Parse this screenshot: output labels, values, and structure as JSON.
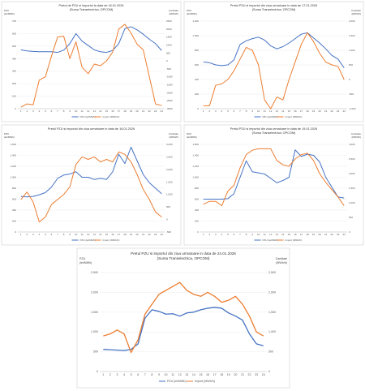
{
  "chart_data": [
    {
      "type": "line",
      "title_lines": [
        "Pretul de PZU si importul la data de 16.01.2026",
        "(Sursa Transelectrica, OPCOM)"
      ],
      "ylabel_left": [
        "PZU",
        "(lei/MWh)"
      ],
      "ylabel_right": [
        "Cantitate",
        "(MWh/h)"
      ],
      "x": [
        1,
        2,
        3,
        4,
        5,
        6,
        7,
        8,
        9,
        10,
        11,
        12,
        13,
        14,
        15,
        16,
        17,
        18,
        19,
        20,
        21,
        22,
        23,
        24
      ],
      "y_left_ticks": [
        "0",
        "100",
        "200",
        "300",
        "400",
        "500",
        "600",
        "700"
      ],
      "y_left_range": [
        0,
        700
      ],
      "y_right_ticks": [
        "-3000",
        "-2500",
        "-2000",
        "-1500",
        "-1000",
        "-500",
        "0",
        "500",
        "1000",
        "1500",
        "2000",
        "2500"
      ],
      "y_right_range": [
        -3000,
        2500
      ],
      "series": [
        {
          "name": "PZU (lei/MWh)",
          "color": "#4472c4",
          "axis": "left",
          "values": [
            470,
            462,
            458,
            455,
            455,
            455,
            450,
            468,
            520,
            600,
            540,
            505,
            470,
            455,
            450,
            465,
            520,
            640,
            655,
            630,
            595,
            555,
            520,
            465
          ]
        },
        {
          "name": "Import (MWh/h)",
          "color": "#ed7d31",
          "axis": "right",
          "values": [
            -2900,
            -2700,
            -2750,
            -1200,
            -1000,
            300,
            1500,
            1550,
            150,
            1200,
            -400,
            -800,
            -200,
            -300,
            0,
            550,
            2000,
            2300,
            1750,
            1050,
            700,
            -1000,
            -2700,
            -2800
          ]
        }
      ]
    },
    {
      "type": "line",
      "title_lines": [
        "Pretul PZU si importul din ziua urmatoare in data de 17.01.2026",
        "(Sursa Transelectrica, OPCOM)"
      ],
      "ylabel_left": [
        "PZU",
        "(lei/MWh)"
      ],
      "ylabel_right": [
        "Cantitate",
        "(MWh/h)"
      ],
      "x": [
        1,
        2,
        3,
        4,
        5,
        6,
        7,
        8,
        9,
        10,
        11,
        12,
        13,
        14,
        15,
        16,
        17,
        18,
        19,
        20,
        21,
        22,
        23,
        24
      ],
      "y_left_ticks": [
        "0",
        "200",
        "400",
        "600",
        "800",
        "1,000",
        "1,200"
      ],
      "y_left_range": [
        0,
        1200
      ],
      "y_right_ticks": [
        "-1,000",
        "-500",
        "0",
        "500",
        "1,000",
        "1,500",
        "2,000"
      ],
      "y_right_range": [
        -1000,
        2000
      ],
      "series": [
        {
          "name": "PZU (lei/MWh)",
          "color": "#4472c4",
          "axis": "left",
          "values": [
            640,
            630,
            600,
            590,
            600,
            670,
            880,
            930,
            960,
            980,
            940,
            860,
            820,
            850,
            900,
            960,
            1020,
            1040,
            970,
            900,
            820,
            730,
            680,
            560
          ]
        },
        {
          "name": "Import (MWh/h)",
          "color": "#ed7d31",
          "axis": "right",
          "values": [
            -900,
            -900,
            -200,
            -150,
            0,
            300,
            700,
            1100,
            1000,
            500,
            -700,
            -1000,
            -600,
            -700,
            0,
            600,
            1200,
            1600,
            1300,
            900,
            600,
            500,
            450,
            0
          ]
        }
      ]
    },
    {
      "type": "line",
      "title_lines": [
        "Pretul PZU si importul din ziua urmatoare in data de 18.01.2026"
      ],
      "ylabel_left": [
        "PZU",
        "(lei/MWh)"
      ],
      "ylabel_right": [
        "Cantitate",
        "(MWh/h)"
      ],
      "x": [
        1,
        2,
        3,
        4,
        5,
        6,
        7,
        8,
        9,
        10,
        11,
        12,
        13,
        14,
        15,
        16,
        17,
        18,
        19,
        20,
        21,
        22,
        23,
        24
      ],
      "y_left_ticks": [
        "0",
        "200",
        "400",
        "600",
        "800",
        "1,000",
        "1,200",
        "1,400",
        "1,600"
      ],
      "y_left_range": [
        0,
        1600
      ],
      "y_right_ticks": [
        "-500",
        "0",
        "500",
        "1,000",
        "1,500",
        "2,000",
        "2,500",
        "3,000"
      ],
      "y_right_range": [
        -500,
        3000
      ],
      "series": [
        {
          "name": "PZU (lei/MWh)",
          "color": "#4472c4",
          "axis": "left",
          "values": [
            650,
            640,
            650,
            680,
            720,
            820,
            980,
            1040,
            1060,
            1100,
            1000,
            1000,
            960,
            980,
            960,
            1100,
            1420,
            1250,
            1550,
            1300,
            1050,
            900,
            800,
            700
          ]
        },
        {
          "name": "Import (MWh/h)",
          "color": "#ed7d31",
          "axis": "right",
          "values": [
            800,
            1100,
            700,
            -100,
            100,
            600,
            800,
            1000,
            1300,
            2200,
            2500,
            2400,
            2500,
            2300,
            2400,
            2300,
            2700,
            2600,
            2300,
            1800,
            1200,
            800,
            300,
            100
          ]
        }
      ]
    },
    {
      "type": "line",
      "title_lines": [
        "Pretul PZU si importul din ziua urmatoare in data de 19.01.2026",
        "(Sursa Transelectrica, OPCOM)"
      ],
      "ylabel_left": [
        "PZU",
        "(lei/MWh)"
      ],
      "ylabel_right": [
        "Cantitate",
        "(MWh/h)"
      ],
      "x": [
        1,
        2,
        3,
        4,
        5,
        6,
        7,
        8,
        9,
        10,
        11,
        12,
        13,
        14,
        15,
        16,
        17,
        18,
        19,
        20,
        21,
        22,
        23,
        24
      ],
      "y_left_ticks": [
        "0",
        "200",
        "400",
        "600",
        "800",
        "1,000",
        "1,200",
        "1,400",
        "1,600"
      ],
      "y_left_range": [
        0,
        1600
      ],
      "y_right_ticks": [
        "0",
        "500",
        "1,000",
        "1,500",
        "2,000",
        "2,500",
        "3,000"
      ],
      "y_right_range": [
        0,
        3000
      ],
      "series": [
        {
          "name": "PZU (lei/MWh)",
          "color": "#4472c4",
          "axis": "left",
          "values": [
            600,
            600,
            600,
            600,
            610,
            700,
            1000,
            1300,
            1100,
            1080,
            1060,
            980,
            900,
            940,
            1000,
            1500,
            1380,
            1420,
            1400,
            1280,
            1000,
            820,
            640,
            620
          ]
        },
        {
          "name": "Import (MWh/h)",
          "color": "#ed7d31",
          "axis": "right",
          "values": [
            950,
            1050,
            1050,
            900,
            1400,
            1600,
            2200,
            2650,
            2800,
            2850,
            2850,
            2850,
            2450,
            2300,
            2250,
            2500,
            2650,
            2700,
            2450,
            2000,
            1700,
            1450,
            1200,
            900
          ]
        }
      ]
    },
    {
      "type": "line",
      "title_lines": [
        "Pretul PZU si importul din ziua urmatoare in data de 24.01.2026",
        "(Sursa Transelectrica, OPCOM)"
      ],
      "ylabel_left": [
        "PZU",
        "(lei/MWh)"
      ],
      "ylabel_right": [
        "Cantitate",
        "(MWh/h)"
      ],
      "x": [
        1,
        2,
        3,
        4,
        5,
        6,
        7,
        8,
        9,
        10,
        11,
        12,
        13,
        14,
        15,
        16,
        17,
        18,
        19,
        20,
        21,
        22,
        23,
        24
      ],
      "y_left_ticks": [
        "0",
        "500",
        "1,000",
        "1,500",
        "2,000",
        "2,500"
      ],
      "y_left_range": [
        0,
        2500
      ],
      "y_right_ticks": [
        "0",
        "500",
        "1,000",
        "1,500",
        "2,000",
        "2,500"
      ],
      "y_right_range": [
        0,
        2500
      ],
      "series": [
        {
          "name": "PZU (lei/MWh)",
          "color": "#4472c4",
          "axis": "left",
          "values": [
            560,
            550,
            540,
            530,
            560,
            700,
            1350,
            1560,
            1520,
            1450,
            1460,
            1400,
            1480,
            1500,
            1560,
            1600,
            1620,
            1600,
            1480,
            1400,
            1300,
            950,
            700,
            650
          ]
        },
        {
          "name": "Import (MWh/h)",
          "color": "#ed7d31",
          "axis": "right",
          "values": [
            900,
            950,
            1050,
            950,
            480,
            800,
            1450,
            1700,
            1950,
            2050,
            2150,
            2250,
            2050,
            1950,
            1900,
            2000,
            1900,
            1750,
            1800,
            1900,
            1700,
            1400,
            1000,
            900
          ]
        }
      ]
    }
  ]
}
